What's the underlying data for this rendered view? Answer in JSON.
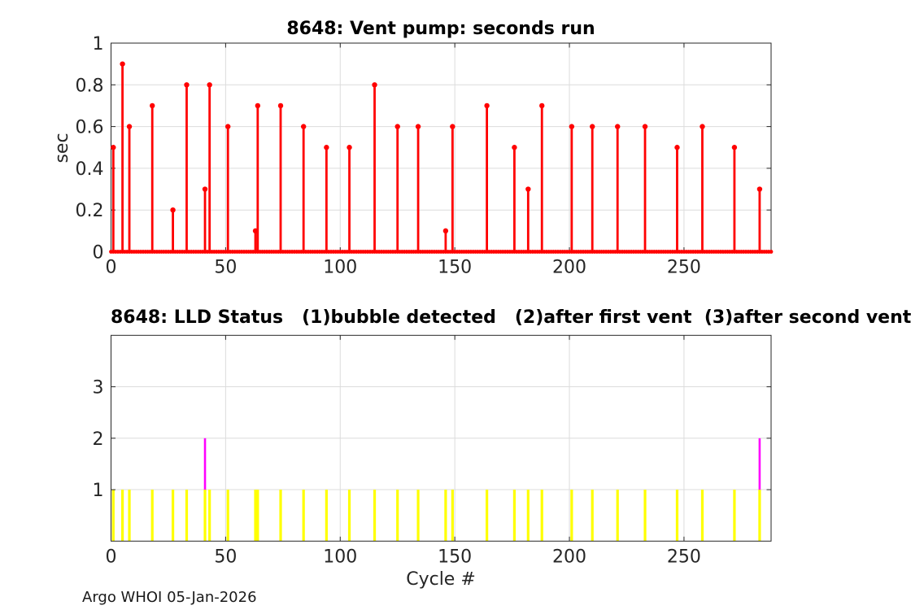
{
  "figure": {
    "footer": "Argo WHOI 05-Jan-2026",
    "colors": {
      "stem": "#ff0000",
      "status1": "#ffff00",
      "status2": "#ff00ff",
      "axis": "#262626",
      "grid": "#dcdcdc",
      "title": "#000000"
    }
  },
  "chart_data": [
    {
      "id": "vent_pump",
      "type": "stem",
      "title": "8648: Vent pump: seconds run",
      "xlabel": "",
      "ylabel": "sec",
      "xlim": [
        0,
        288
      ],
      "ylim": [
        0,
        1
      ],
      "x_ticks": [
        0,
        50,
        100,
        150,
        200,
        250
      ],
      "y_ticks": [
        0,
        0.2,
        0.4,
        0.6,
        0.8,
        1
      ],
      "grid": true,
      "baseline_value": 0,
      "baseline_markers_every_cycle": true,
      "series": [
        {
          "name": "seconds_run",
          "color": "#ff0000",
          "x": [
            1,
            5,
            8,
            18,
            27,
            33,
            41,
            43,
            51,
            63,
            64,
            74,
            84,
            94,
            104,
            115,
            125,
            134,
            146,
            149,
            164,
            176,
            182,
            188,
            201,
            210,
            221,
            233,
            247,
            258,
            272,
            283
          ],
          "y": [
            0.5,
            0.9,
            0.6,
            0.7,
            0.2,
            0.8,
            0.3,
            0.8,
            0.6,
            0.1,
            0.7,
            0.7,
            0.6,
            0.5,
            0.5,
            0.8,
            0.6,
            0.6,
            0.1,
            0.6,
            0.7,
            0.5,
            0.3,
            0.7,
            0.6,
            0.6,
            0.6,
            0.6,
            0.5,
            0.6,
            0.5,
            0.3
          ]
        }
      ]
    },
    {
      "id": "lld_status",
      "type": "bar",
      "title": "8648: LLD Status   (1)bubble detected   (2)after first vent  (3)after second vent",
      "xlabel": "Cycle #",
      "ylabel": "",
      "xlim": [
        0,
        288
      ],
      "ylim": [
        0,
        4
      ],
      "x_ticks": [
        0,
        50,
        100,
        150,
        200,
        250
      ],
      "y_ticks": [
        1,
        2,
        3
      ],
      "grid": true,
      "series": [
        {
          "name": "status_1_bubble_detected",
          "color": "#ffff00",
          "bar_from": 0,
          "bar_to": 1,
          "x": [
            1,
            5,
            8,
            18,
            27,
            33,
            41,
            43,
            51,
            63,
            64,
            74,
            84,
            94,
            104,
            115,
            125,
            134,
            146,
            149,
            164,
            176,
            182,
            188,
            201,
            210,
            221,
            233,
            247,
            258,
            272,
            283
          ]
        },
        {
          "name": "status_2_after_first_vent",
          "color": "#ff00ff",
          "bar_from": 1,
          "bar_to": 2,
          "x": [
            41,
            283
          ]
        }
      ]
    }
  ]
}
